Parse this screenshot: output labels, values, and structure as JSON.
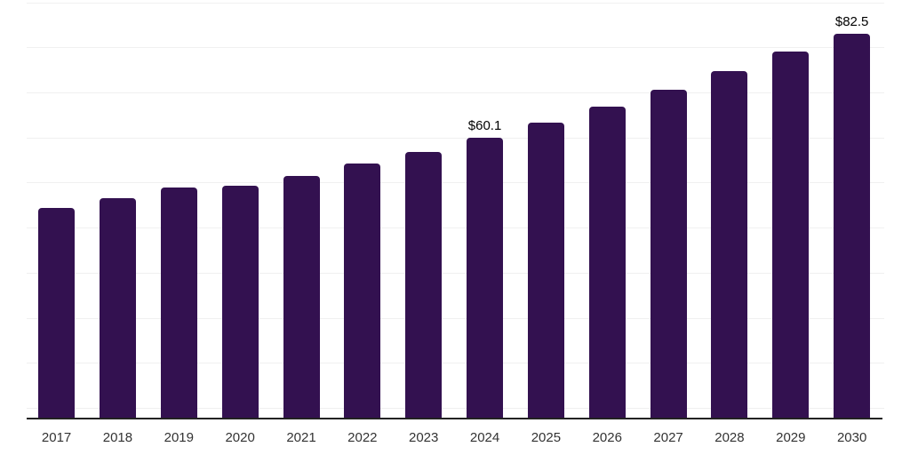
{
  "chart_data": {
    "type": "bar",
    "title": "",
    "xlabel": "",
    "ylabel": "",
    "categories": [
      "2017",
      "2018",
      "2019",
      "2020",
      "2021",
      "2022",
      "2023",
      "2024",
      "2025",
      "2026",
      "2027",
      "2028",
      "2029",
      "2030"
    ],
    "values": [
      45.0,
      47.2,
      49.5,
      49.8,
      51.9,
      54.6,
      57.1,
      60.1,
      63.5,
      66.8,
      70.5,
      74.4,
      78.6,
      82.5
    ],
    "data_labels": {
      "2024": "$60.1",
      "2030": "$82.5"
    },
    "ylim": [
      0,
      90
    ],
    "grid": "horizontal-only",
    "legend": "none",
    "colors": {
      "bar": "#331150",
      "gridline": "#f0f0f0",
      "axis_line": "#222222",
      "tick_label": "#333333",
      "data_label": "#000000",
      "background": "#ffffff"
    }
  }
}
